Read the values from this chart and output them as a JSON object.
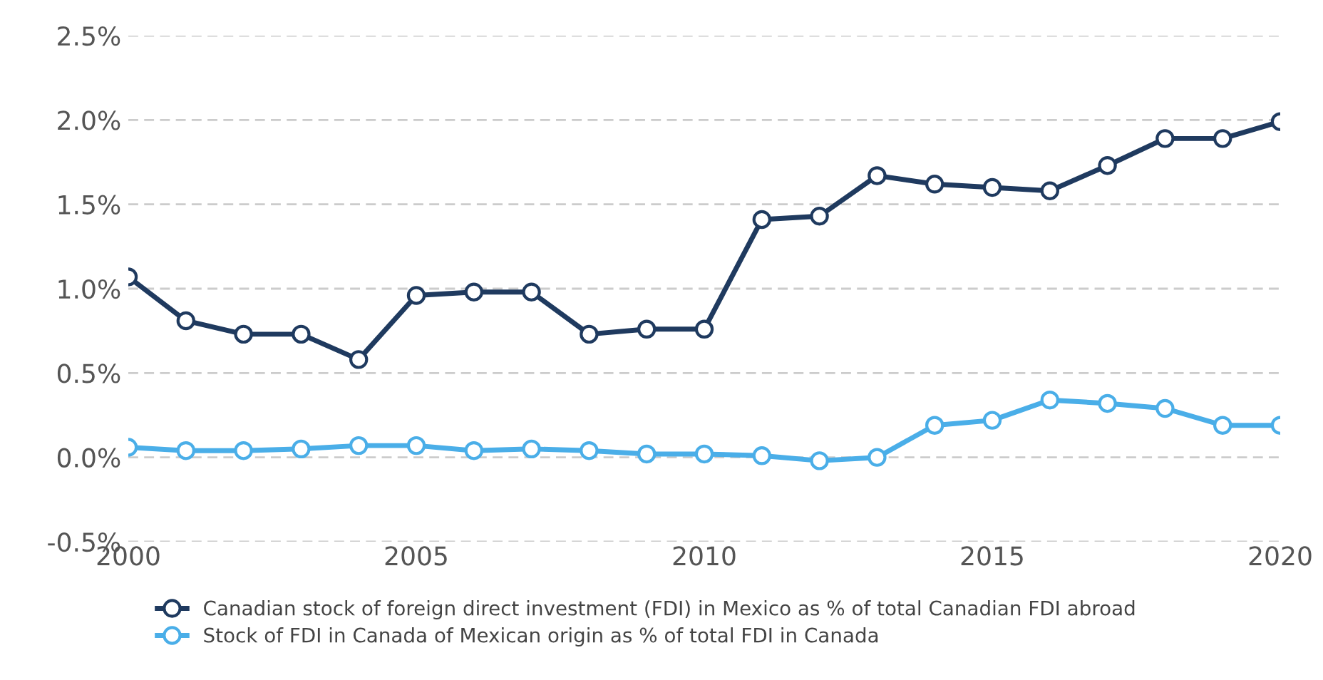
{
  "chart_data": {
    "type": "line",
    "x": [
      2000,
      2001,
      2002,
      2003,
      2004,
      2005,
      2006,
      2007,
      2008,
      2009,
      2010,
      2011,
      2012,
      2013,
      2014,
      2015,
      2016,
      2017,
      2018,
      2019,
      2020
    ],
    "series": [
      {
        "name": "Canadian stock of foreign direct investment (FDI) in Mexico as % of total Canadian FDI abroad",
        "color": "#1f3a5f",
        "values": [
          1.07,
          0.81,
          0.73,
          0.73,
          0.58,
          0.96,
          0.98,
          0.98,
          0.73,
          0.76,
          0.76,
          1.41,
          1.43,
          1.67,
          1.62,
          1.6,
          1.58,
          1.73,
          1.89,
          1.89,
          1.99
        ]
      },
      {
        "name": "Stock of FDI in Canada of Mexican origin as % of total FDI in Canada",
        "color": "#4aaee8",
        "values": [
          0.06,
          0.04,
          0.04,
          0.05,
          0.07,
          0.07,
          0.04,
          0.05,
          0.04,
          0.02,
          0.02,
          0.01,
          -0.02,
          0.0,
          0.19,
          0.22,
          0.34,
          0.32,
          0.29,
          0.19,
          0.19
        ]
      }
    ],
    "xlim": [
      2000,
      2020
    ],
    "xticks": [
      2000,
      2005,
      2010,
      2015,
      2020
    ],
    "ylim": [
      -0.5,
      2.5
    ],
    "yticks": [
      {
        "value": -0.5,
        "label": "-0.5%"
      },
      {
        "value": 0,
        "label": "0.0%"
      },
      {
        "value": 0.5,
        "label": "0.5%"
      },
      {
        "value": 1.0,
        "label": "1.0%"
      },
      {
        "value": 1.5,
        "label": "1.5%"
      },
      {
        "value": 2.0,
        "label": "2.0%"
      },
      {
        "value": 2.5,
        "label": "2.5%"
      }
    ],
    "grid": "y",
    "legend": "bottom",
    "marker": "circle",
    "line_style": "solid"
  }
}
